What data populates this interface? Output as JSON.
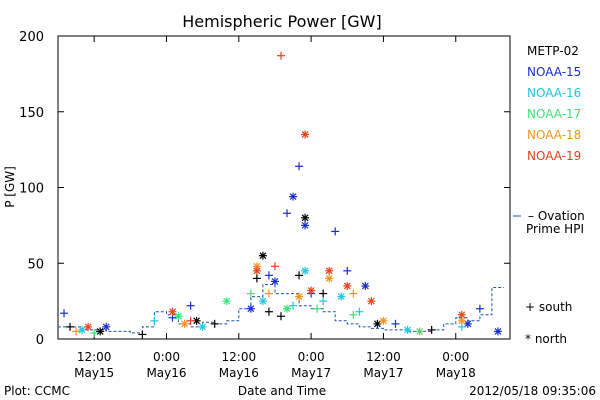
{
  "chart_data": {
    "type": "scatter",
    "title": "Hemispheric Power [GW]",
    "ylabel": "P [GW]",
    "xlabel": "Date and Time",
    "ylim": [
      0,
      200
    ],
    "yticks": [
      0,
      50,
      100,
      150,
      200
    ],
    "xlim": [
      "2012-05-15 06:00",
      "2012-05-18 09:00"
    ],
    "xticks": [
      {
        "time": "2012-05-15 12:00",
        "line1": "12:00",
        "line2": "May15"
      },
      {
        "time": "2012-05-16 00:00",
        "line1": "0:00",
        "line2": "May16"
      },
      {
        "time": "2012-05-16 12:00",
        "line1": "12:00",
        "line2": "May16"
      },
      {
        "time": "2012-05-17 00:00",
        "line1": "0:00",
        "line2": "May17"
      },
      {
        "time": "2012-05-17 12:00",
        "line1": "12:00",
        "line2": "May17"
      },
      {
        "time": "2012-05-18 00:00",
        "line1": "0:00",
        "line2": "May18"
      }
    ],
    "legend": [
      {
        "name": "METP-02",
        "color": "#000000"
      },
      {
        "name": "NOAA-15",
        "color": "#1a2fc8"
      },
      {
        "name": "NOAA-16",
        "color": "#22c6e0"
      },
      {
        "name": "NOAA-17",
        "color": "#3fe07a"
      },
      {
        "name": "NOAA-18",
        "color": "#f0941e"
      },
      {
        "name": "NOAA-19",
        "color": "#e8401c"
      }
    ],
    "legend_position": "right",
    "marker_key": {
      "south": "+ south",
      "north": "* north"
    },
    "ovation": {
      "label_line1": "– Ovation",
      "label_line2": "Prime HPI",
      "color": "#1a55b0",
      "points": [
        [
          "2012-05-15 06:00",
          8
        ],
        [
          "2012-05-15 10:00",
          6
        ],
        [
          "2012-05-15 14:00",
          5
        ],
        [
          "2012-05-15 18:00",
          4
        ],
        [
          "2012-05-15 20:00",
          8
        ],
        [
          "2012-05-15 22:00",
          18
        ],
        [
          "2012-05-16 00:00",
          16
        ],
        [
          "2012-05-16 02:00",
          10
        ],
        [
          "2012-05-16 04:00",
          8
        ],
        [
          "2012-05-16 06:00",
          11
        ],
        [
          "2012-05-16 08:00",
          10
        ],
        [
          "2012-05-16 10:00",
          12
        ],
        [
          "2012-05-16 12:00",
          20
        ],
        [
          "2012-05-16 14:00",
          28
        ],
        [
          "2012-05-16 16:00",
          36
        ],
        [
          "2012-05-16 18:00",
          30
        ],
        [
          "2012-05-16 20:00",
          30
        ],
        [
          "2012-05-16 22:00",
          22
        ],
        [
          "2012-05-17 00:00",
          20
        ],
        [
          "2012-05-17 02:00",
          18
        ],
        [
          "2012-05-17 04:00",
          12
        ],
        [
          "2012-05-17 06:00",
          10
        ],
        [
          "2012-05-17 08:00",
          8
        ],
        [
          "2012-05-17 10:00",
          7
        ],
        [
          "2012-05-17 12:00",
          6
        ],
        [
          "2012-05-17 16:00",
          5
        ],
        [
          "2012-05-17 20:00",
          6
        ],
        [
          "2012-05-17 22:00",
          10
        ],
        [
          "2012-05-18 00:00",
          14
        ],
        [
          "2012-05-18 02:00",
          12
        ],
        [
          "2012-05-18 04:00",
          16
        ],
        [
          "2012-05-18 06:00",
          34
        ],
        [
          "2012-05-18 08:00",
          34
        ]
      ]
    },
    "series": [
      {
        "name": "METP-02",
        "color": "#000000",
        "points": [
          [
            "2012-05-15 08:00",
            8,
            "south"
          ],
          [
            "2012-05-15 13:00",
            5,
            "north"
          ],
          [
            "2012-05-15 20:00",
            3,
            "south"
          ],
          [
            "2012-05-16 05:00",
            12,
            "north"
          ],
          [
            "2012-05-16 08:00",
            10,
            "south"
          ],
          [
            "2012-05-16 15:00",
            40,
            "south"
          ],
          [
            "2012-05-16 16:00",
            55,
            "north"
          ],
          [
            "2012-05-16 17:00",
            18,
            "south"
          ],
          [
            "2012-05-16 19:00",
            15,
            "south"
          ],
          [
            "2012-05-16 22:00",
            42,
            "south"
          ],
          [
            "2012-05-16 23:00",
            80,
            "north"
          ],
          [
            "2012-05-17 02:00",
            30,
            "south"
          ],
          [
            "2012-05-17 11:00",
            10,
            "north"
          ],
          [
            "2012-05-17 20:00",
            6,
            "south"
          ]
        ]
      },
      {
        "name": "NOAA-15",
        "color": "#1a2fc8",
        "points": [
          [
            "2012-05-15 07:00",
            17,
            "south"
          ],
          [
            "2012-05-15 14:00",
            8,
            "north"
          ],
          [
            "2012-05-16 01:00",
            14,
            "south"
          ],
          [
            "2012-05-16 04:00",
            22,
            "south"
          ],
          [
            "2012-05-16 14:00",
            20,
            "north"
          ],
          [
            "2012-05-16 17:00",
            42,
            "south"
          ],
          [
            "2012-05-16 18:00",
            38,
            "north"
          ],
          [
            "2012-05-16 20:00",
            83,
            "south"
          ],
          [
            "2012-05-16 21:00",
            94,
            "north"
          ],
          [
            "2012-05-16 22:00",
            114,
            "south"
          ],
          [
            "2012-05-16 23:00",
            75,
            "north"
          ],
          [
            "2012-05-17 00:00",
            30,
            "south"
          ],
          [
            "2012-05-17 04:00",
            71,
            "south"
          ],
          [
            "2012-05-17 06:00",
            45,
            "south"
          ],
          [
            "2012-05-17 09:00",
            35,
            "north"
          ],
          [
            "2012-05-17 14:00",
            10,
            "south"
          ],
          [
            "2012-05-18 02:00",
            10,
            "north"
          ],
          [
            "2012-05-18 04:00",
            20,
            "south"
          ],
          [
            "2012-05-18 07:00",
            5,
            "north"
          ]
        ]
      },
      {
        "name": "NOAA-16",
        "color": "#22c6e0",
        "points": [
          [
            "2012-05-15 10:00",
            6,
            "north"
          ],
          [
            "2012-05-15 22:00",
            12,
            "south"
          ],
          [
            "2012-05-16 06:00",
            8,
            "north"
          ],
          [
            "2012-05-16 16:00",
            25,
            "north"
          ],
          [
            "2012-05-16 21:00",
            22,
            "south"
          ],
          [
            "2012-05-16 23:00",
            45,
            "north"
          ],
          [
            "2012-05-17 02:00",
            25,
            "south"
          ],
          [
            "2012-05-17 05:00",
            28,
            "north"
          ],
          [
            "2012-05-17 08:00",
            18,
            "south"
          ],
          [
            "2012-05-17 16:00",
            6,
            "north"
          ],
          [
            "2012-05-18 01:00",
            8,
            "south"
          ]
        ]
      },
      {
        "name": "NOAA-17",
        "color": "#3fe07a",
        "points": [
          [
            "2012-05-15 12:00",
            4,
            "south"
          ],
          [
            "2012-05-16 02:00",
            15,
            "north"
          ],
          [
            "2012-05-16 10:00",
            25,
            "north"
          ],
          [
            "2012-05-16 14:00",
            30,
            "south"
          ],
          [
            "2012-05-16 20:00",
            20,
            "north"
          ],
          [
            "2012-05-17 01:00",
            20,
            "south"
          ],
          [
            "2012-05-17 07:00",
            16,
            "south"
          ],
          [
            "2012-05-17 18:00",
            5,
            "north"
          ]
        ]
      },
      {
        "name": "NOAA-18",
        "color": "#f0941e",
        "points": [
          [
            "2012-05-15 09:00",
            5,
            "south"
          ],
          [
            "2012-05-16 03:00",
            10,
            "north"
          ],
          [
            "2012-05-16 15:00",
            48,
            "north"
          ],
          [
            "2012-05-16 17:00",
            30,
            "south"
          ],
          [
            "2012-05-16 22:00",
            28,
            "north"
          ],
          [
            "2012-05-17 03:00",
            40,
            "north"
          ],
          [
            "2012-05-17 07:00",
            30,
            "south"
          ],
          [
            "2012-05-17 12:00",
            12,
            "north"
          ],
          [
            "2012-05-18 01:00",
            12,
            "north"
          ]
        ]
      },
      {
        "name": "NOAA-19",
        "color": "#e8401c",
        "points": [
          [
            "2012-05-15 11:00",
            8,
            "north"
          ],
          [
            "2012-05-16 01:00",
            18,
            "north"
          ],
          [
            "2012-05-16 04:00",
            12,
            "south"
          ],
          [
            "2012-05-16 15:00",
            45,
            "north"
          ],
          [
            "2012-05-16 18:00",
            48,
            "south"
          ],
          [
            "2012-05-16 19:00",
            187,
            "south"
          ],
          [
            "2012-05-16 23:00",
            135,
            "north"
          ],
          [
            "2012-05-17 00:00",
            32,
            "north"
          ],
          [
            "2012-05-17 03:00",
            45,
            "north"
          ],
          [
            "2012-05-17 06:00",
            35,
            "north"
          ],
          [
            "2012-05-17 10:00",
            25,
            "north"
          ],
          [
            "2012-05-18 01:00",
            16,
            "north"
          ]
        ]
      }
    ]
  },
  "footer": {
    "plot_label": "Plot: CCMC",
    "timestamp": "2012/05/18 09:35:06"
  }
}
